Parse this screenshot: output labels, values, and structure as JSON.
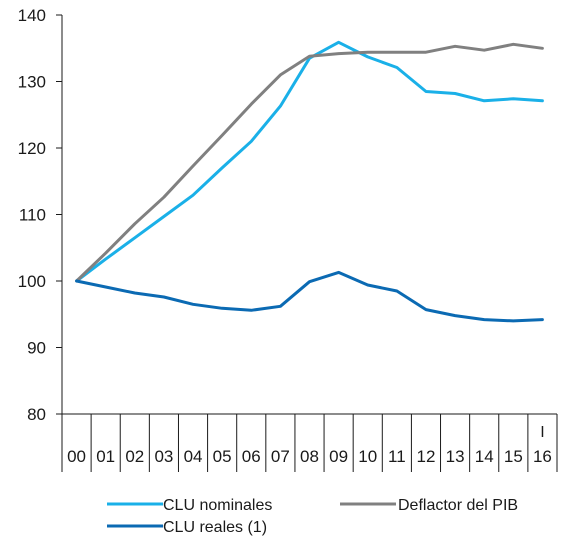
{
  "chart_data": {
    "type": "line",
    "x": [
      "00",
      "01",
      "02",
      "03",
      "04",
      "05",
      "06",
      "07",
      "08",
      "09",
      "10",
      "11",
      "12",
      "13",
      "14",
      "15",
      "16"
    ],
    "x_sublabel": {
      "index": 16,
      "text": "I"
    },
    "ylim": [
      80,
      140
    ],
    "yticks": [
      80,
      90,
      100,
      110,
      120,
      130,
      140
    ],
    "grid": false,
    "legend_position": "bottom",
    "series": [
      {
        "name": "CLU nominales",
        "color": "#1ab0e8",
        "values": [
          100,
          103.3,
          106.5,
          109.7,
          112.9,
          117.0,
          121.0,
          126.3,
          133.5,
          135.9,
          133.7,
          132.1,
          128.5,
          128.2,
          127.1,
          127.4,
          127.1
        ]
      },
      {
        "name": "Deflactor del PIB",
        "color": "#808080",
        "values": [
          100,
          104.2,
          108.6,
          112.6,
          117.3,
          121.9,
          126.6,
          131.0,
          133.8,
          134.2,
          134.4,
          134.4,
          134.4,
          135.3,
          134.7,
          135.6,
          135.0
        ]
      },
      {
        "name": "CLU reales (1)",
        "color": "#0b6ab3",
        "values": [
          100,
          99.1,
          98.2,
          97.6,
          96.5,
          95.9,
          95.6,
          96.2,
          99.9,
          101.3,
          99.4,
          98.5,
          95.7,
          94.8,
          94.2,
          94.0,
          94.2
        ]
      }
    ]
  }
}
